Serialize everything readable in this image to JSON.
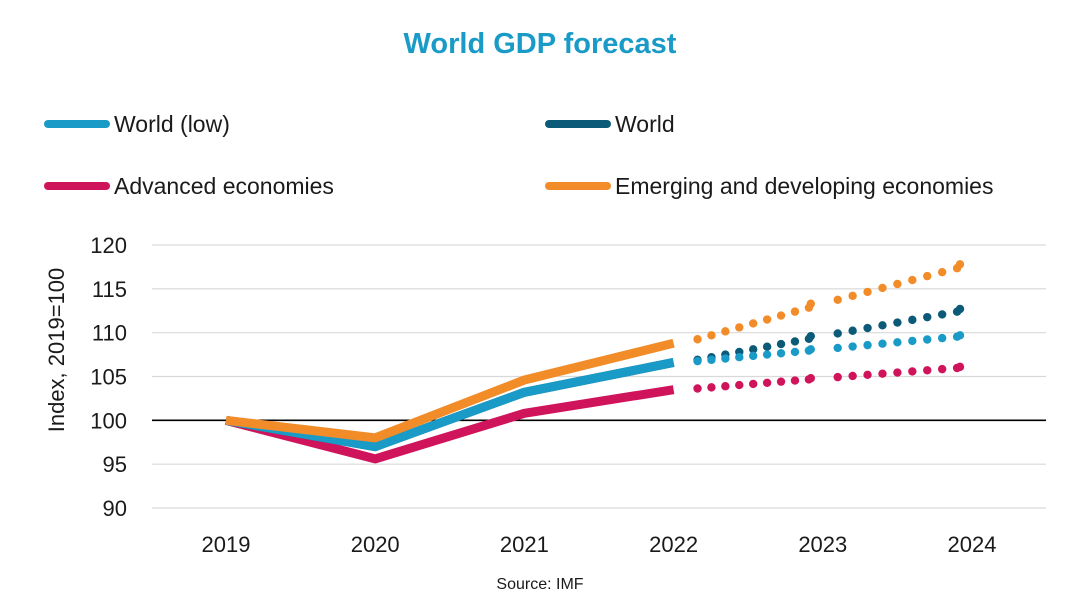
{
  "chart_data": {
    "type": "line",
    "title": "World GDP forecast",
    "ylabel": "Index, 2019=100",
    "source": "Source: IMF",
    "x": [
      "2019",
      "2020",
      "2021",
      "2022",
      "2023",
      "2024"
    ],
    "ylim": [
      90,
      120
    ],
    "yticks": [
      "90",
      "95",
      "100",
      "105",
      "110",
      "115",
      "120"
    ],
    "grid": true,
    "baseline": 100,
    "legend_position": "top",
    "forecast_start": "2022",
    "series": [
      {
        "name": "World (low)",
        "color": "#1a9bc7",
        "values": [
          100,
          97.0,
          103.2,
          106.6,
          108.1,
          109.7
        ]
      },
      {
        "name": "World",
        "color": "#0b5a78",
        "values": [
          100,
          97.0,
          103.2,
          106.6,
          109.6,
          112.7
        ]
      },
      {
        "name": "Advanced economies",
        "color": "#d0145c",
        "values": [
          100,
          95.6,
          100.8,
          103.5,
          104.8,
          106.1
        ]
      },
      {
        "name": "Emerging and developing economies",
        "color": "#f28c28",
        "values": [
          100,
          98.0,
          104.6,
          108.8,
          113.3,
          117.8
        ]
      }
    ]
  }
}
